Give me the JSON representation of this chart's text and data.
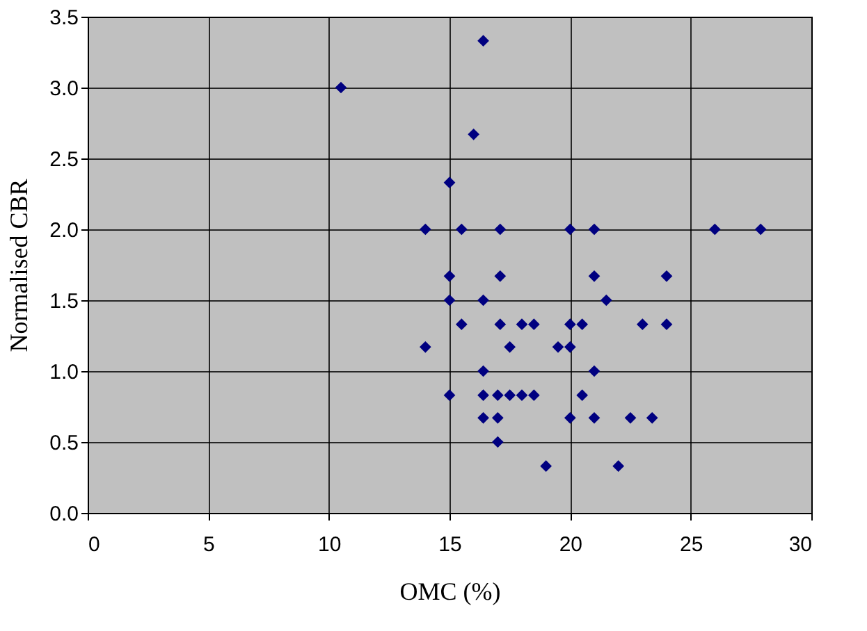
{
  "chart_data": {
    "type": "scatter",
    "xlabel": "OMC (%)",
    "ylabel": "Normalised CBR",
    "x": [
      10.5,
      16.4,
      16.0,
      15.0,
      14.0,
      15.5,
      17.1,
      20.0,
      21.0,
      26.0,
      27.9,
      15.0,
      17.1,
      21.0,
      24.0,
      15.0,
      16.4,
      21.5,
      15.5,
      17.1,
      18.0,
      18.5,
      20.0,
      20.5,
      23.0,
      24.0,
      14.0,
      17.5,
      19.5,
      20.0,
      16.4,
      21.0,
      15.0,
      16.4,
      17.0,
      17.5,
      18.0,
      18.5,
      20.5,
      16.4,
      17.0,
      20.0,
      21.0,
      22.5,
      23.4,
      17.0,
      19.0,
      22.0
    ],
    "series": [
      {
        "color": "#000080",
        "values": [
          3.0,
          3.33,
          2.67,
          2.33,
          2.0,
          2.0,
          2.0,
          2.0,
          2.0,
          2.0,
          2.0,
          1.67,
          1.67,
          1.67,
          1.67,
          1.5,
          1.5,
          1.5,
          1.33,
          1.33,
          1.33,
          1.33,
          1.33,
          1.33,
          1.33,
          1.33,
          1.17,
          1.17,
          1.17,
          1.17,
          1.0,
          1.0,
          0.83,
          0.83,
          0.83,
          0.83,
          0.83,
          0.83,
          0.83,
          0.67,
          0.67,
          0.67,
          0.67,
          0.67,
          0.67,
          0.5,
          0.33,
          0.33
        ]
      }
    ],
    "xlim": [
      0,
      30
    ],
    "xticks": [
      0,
      5,
      10,
      15,
      20,
      25,
      30
    ],
    "ylim": [
      0,
      3.5
    ],
    "yticks": [
      {
        "value": 0,
        "label": "0.0"
      },
      0.5,
      {
        "value": 1,
        "label": "1.0"
      },
      1.5,
      {
        "value": 2,
        "label": "2.0"
      },
      2.5,
      {
        "value": 3,
        "label": "3.0"
      },
      3.5
    ],
    "grid": true,
    "marker": "diamond"
  }
}
